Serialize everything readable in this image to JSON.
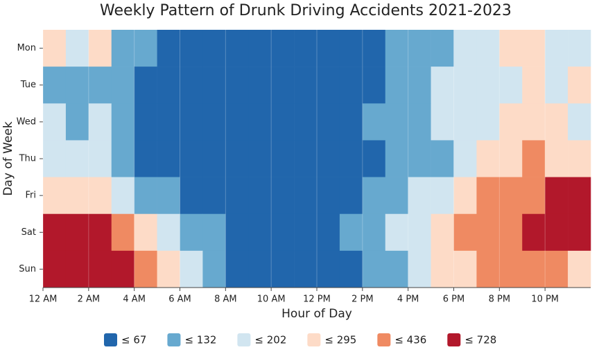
{
  "chart_data": {
    "type": "heatmap",
    "title": "Weekly Pattern of Drunk Driving Accidents 2021-2023",
    "x_label": "Hour of Day",
    "y_label": "Day of Week",
    "x": [
      0,
      1,
      2,
      3,
      4,
      5,
      6,
      7,
      8,
      9,
      10,
      11,
      12,
      13,
      14,
      15,
      16,
      17,
      18,
      19,
      20,
      21,
      22,
      23
    ],
    "xlim": [
      0,
      24
    ],
    "xticks": [
      {
        "value": 0,
        "label": "12 AM"
      },
      {
        "value": 2,
        "label": "2 AM"
      },
      {
        "value": 4,
        "label": "4 AM"
      },
      {
        "value": 6,
        "label": "6 AM"
      },
      {
        "value": 8,
        "label": "8 AM"
      },
      {
        "value": 10,
        "label": "10 AM"
      },
      {
        "value": 12,
        "label": "12 PM"
      },
      {
        "value": 14,
        "label": "2 PM"
      },
      {
        "value": 16,
        "label": "4 PM"
      },
      {
        "value": 18,
        "label": "6 PM"
      },
      {
        "value": 20,
        "label": "8 PM"
      },
      {
        "value": 22,
        "label": "10 PM"
      }
    ],
    "categories": [
      "Mon",
      "Tue",
      "Wed",
      "Thu",
      "Fri",
      "Sat",
      "Sun"
    ],
    "values": [
      [
        250,
        170,
        250,
        100,
        100,
        40,
        40,
        40,
        40,
        40,
        40,
        40,
        40,
        40,
        40,
        100,
        100,
        100,
        170,
        170,
        250,
        250,
        170,
        170
      ],
      [
        100,
        100,
        100,
        100,
        40,
        40,
        40,
        40,
        40,
        40,
        40,
        40,
        40,
        40,
        40,
        100,
        100,
        170,
        170,
        170,
        170,
        250,
        170,
        250
      ],
      [
        170,
        100,
        170,
        100,
        40,
        40,
        40,
        40,
        40,
        40,
        40,
        40,
        40,
        40,
        100,
        100,
        100,
        170,
        170,
        170,
        250,
        250,
        250,
        170
      ],
      [
        170,
        170,
        170,
        100,
        40,
        40,
        40,
        40,
        40,
        40,
        40,
        40,
        40,
        40,
        40,
        100,
        100,
        100,
        170,
        250,
        250,
        360,
        250,
        250
      ],
      [
        250,
        250,
        250,
        170,
        100,
        100,
        40,
        40,
        40,
        40,
        40,
        40,
        40,
        40,
        100,
        100,
        170,
        170,
        250,
        360,
        360,
        360,
        550,
        550
      ],
      [
        550,
        550,
        550,
        360,
        250,
        170,
        100,
        100,
        40,
        40,
        40,
        40,
        40,
        100,
        100,
        170,
        170,
        250,
        360,
        360,
        360,
        550,
        550,
        550
      ],
      [
        550,
        550,
        550,
        550,
        360,
        250,
        170,
        100,
        40,
        40,
        40,
        40,
        40,
        40,
        100,
        100,
        170,
        250,
        250,
        360,
        360,
        360,
        360,
        250
      ]
    ],
    "color_bins": [
      {
        "value": 67,
        "label": "≤ 67",
        "color": "#2166ac"
      },
      {
        "value": 132,
        "label": "≤ 132",
        "color": "#67a9cf"
      },
      {
        "value": 202,
        "label": "≤ 202",
        "color": "#d1e5f0"
      },
      {
        "value": 295,
        "label": "≤ 295",
        "color": "#fddbc7"
      },
      {
        "value": 436,
        "label": "≤ 436",
        "color": "#ef8a62"
      },
      {
        "value": 728,
        "label": "≤ 728",
        "color": "#b2182b"
      }
    ],
    "legend": "bottom"
  }
}
